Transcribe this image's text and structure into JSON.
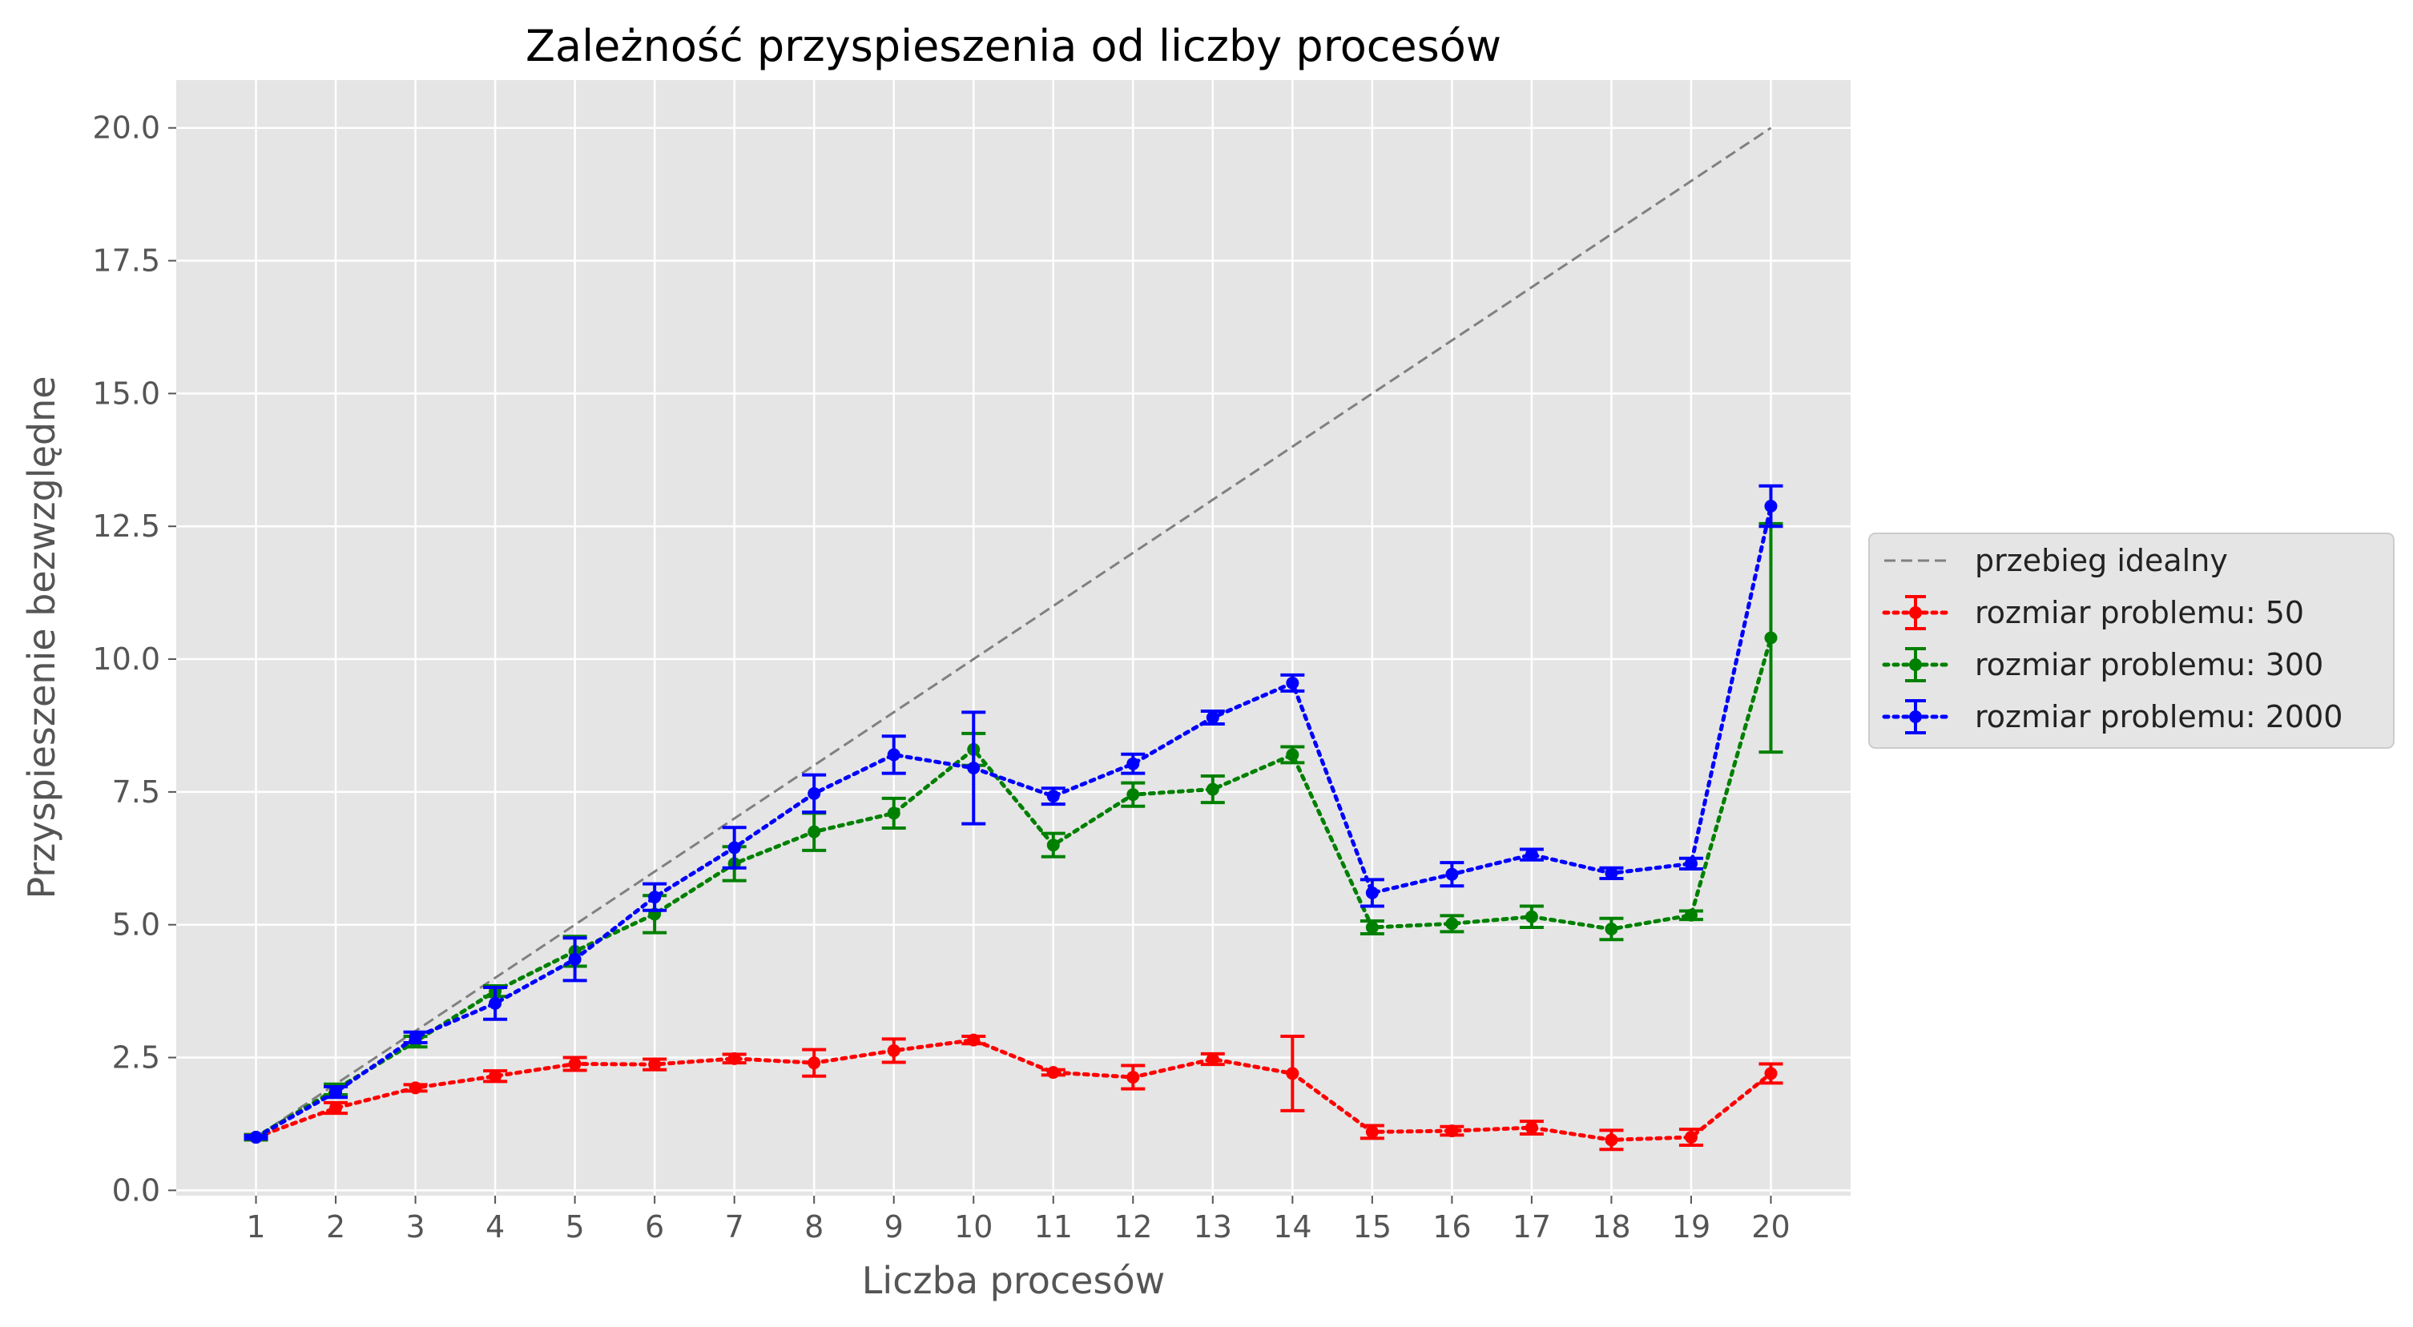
{
  "chart_data": {
    "type": "line",
    "title": "Zależność przyspieszenia od liczby procesów",
    "xlabel": "Liczba procesów",
    "ylabel": "Przyspieszenie bezwzględne",
    "xlim": [
      0.0,
      21.0
    ],
    "ylim": [
      -0.1,
      20.9
    ],
    "x_ticks": [
      1,
      2,
      3,
      4,
      5,
      6,
      7,
      8,
      9,
      10,
      11,
      12,
      13,
      14,
      15,
      16,
      17,
      18,
      19,
      20
    ],
    "y_ticks": [
      0.0,
      2.5,
      5.0,
      7.5,
      10.0,
      12.5,
      15.0,
      17.5,
      20.0
    ],
    "y_tick_labels": [
      "0.0",
      "2.5",
      "5.0",
      "7.5",
      "10.0",
      "12.5",
      "15.0",
      "17.5",
      "20.0"
    ],
    "grid": true,
    "legend_position": "outside right",
    "ideal": {
      "name": "przebieg idealny",
      "color": "#808080",
      "x": [
        1,
        20
      ],
      "y": [
        1,
        20
      ]
    },
    "x": [
      1,
      2,
      3,
      4,
      5,
      6,
      7,
      8,
      9,
      10,
      11,
      12,
      13,
      14,
      15,
      16,
      17,
      18,
      19,
      20
    ],
    "series": [
      {
        "name": "rozmiar problemu: 50",
        "color": "#ff0000",
        "values": [
          1.0,
          1.55,
          1.93,
          2.15,
          2.38,
          2.37,
          2.48,
          2.4,
          2.63,
          2.83,
          2.22,
          2.13,
          2.47,
          2.2,
          1.1,
          1.12,
          1.18,
          0.95,
          1.0,
          2.2
        ],
        "errors": [
          0.05,
          0.1,
          0.06,
          0.1,
          0.12,
          0.1,
          0.08,
          0.25,
          0.22,
          0.07,
          0.05,
          0.22,
          0.1,
          0.7,
          0.12,
          0.08,
          0.12,
          0.18,
          0.15,
          0.18
        ]
      },
      {
        "name": "rozmiar problemu: 300",
        "color": "#008000",
        "values": [
          1.0,
          1.9,
          2.8,
          3.75,
          4.5,
          5.2,
          6.15,
          6.75,
          7.1,
          8.3,
          6.5,
          7.45,
          7.55,
          8.2,
          4.95,
          5.02,
          5.15,
          4.92,
          5.18,
          10.4
        ],
        "errors": [
          0.05,
          0.1,
          0.1,
          0.1,
          0.28,
          0.35,
          0.32,
          0.35,
          0.28,
          0.3,
          0.22,
          0.22,
          0.25,
          0.15,
          0.12,
          0.15,
          0.2,
          0.2,
          0.08,
          2.15
        ]
      },
      {
        "name": "rozmiar problemu: 2000",
        "color": "#0000ff",
        "values": [
          1.0,
          1.85,
          2.88,
          3.52,
          4.35,
          5.52,
          6.45,
          7.47,
          8.2,
          7.95,
          7.42,
          8.03,
          8.9,
          9.55,
          5.6,
          5.95,
          6.32,
          5.97,
          6.15,
          12.88
        ],
        "errors": [
          0.03,
          0.1,
          0.1,
          0.3,
          0.4,
          0.25,
          0.38,
          0.35,
          0.35,
          1.05,
          0.15,
          0.18,
          0.12,
          0.15,
          0.25,
          0.22,
          0.1,
          0.1,
          0.1,
          0.38
        ]
      }
    ]
  }
}
